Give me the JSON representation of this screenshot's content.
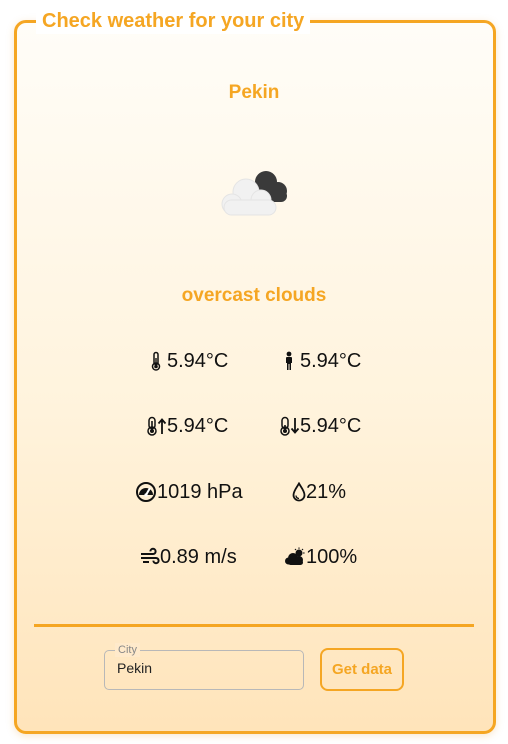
{
  "header": {
    "title": "Check weather for your city"
  },
  "weather": {
    "city": "Pekin",
    "description": "overcast clouds",
    "icon": "overcast-clouds-icon",
    "temp": "5.94°C",
    "feels_like": "5.94°C",
    "temp_max": "5.94°C",
    "temp_min": "5.94°C",
    "pressure": "1019 hPa",
    "humidity": "21%",
    "wind": "0.89 m/s",
    "clouds": "100%"
  },
  "form": {
    "city_label": "City",
    "city_value": "Pekin",
    "submit_label": "Get data"
  },
  "colors": {
    "accent": "#f5a623",
    "text": "#111111"
  }
}
